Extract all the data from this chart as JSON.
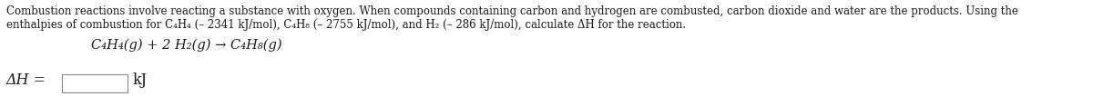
{
  "bg_color": "#ffffff",
  "text_color": "#1a1a1a",
  "para_line1": "Combustion reactions involve reacting a substance with oxygen. When compounds containing carbon and hydrogen are combusted, carbon dioxide and water are the products. Using the",
  "para_line2": "enthalpies of combustion for C₄H₄ (– 2341 kJ/mol), C₄H₈ (– 2755 kJ/mol), and H₂ (– 286 kJ/mol), calculate ΔH for the reaction.",
  "reaction_text": "C₄H₄(g) + 2 H₂(g) → C₄H₈(g)",
  "delta_h_label": "ΔH =",
  "unit_label": "kJ",
  "font_size_para": 8.5,
  "font_size_reaction": 10.5,
  "font_size_answer": 11.5,
  "figwidth": 12.0,
  "figheight": 1.17,
  "dpi": 100
}
